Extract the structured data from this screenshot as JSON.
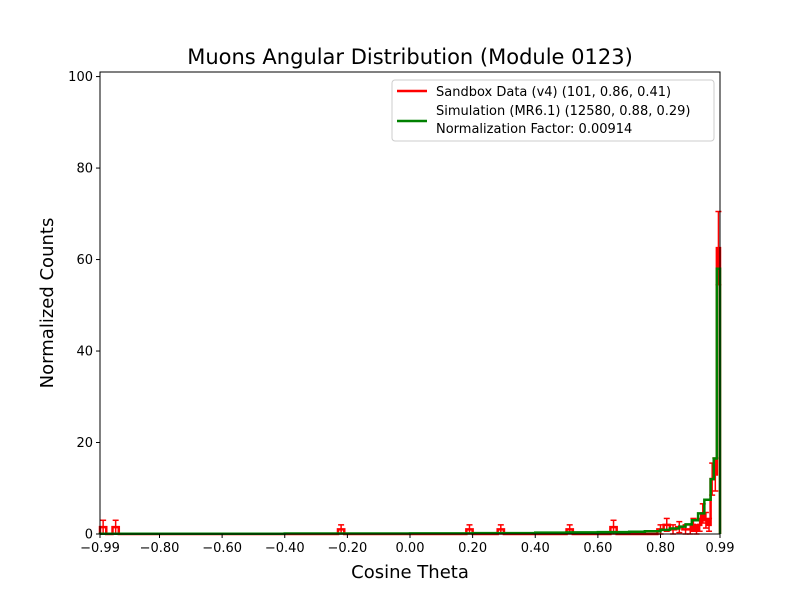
{
  "chart_data": {
    "type": "line",
    "title": "Muons Angular Distribution (Module 0123)",
    "xlabel": "Cosine Theta",
    "ylabel": "Normalized Counts",
    "xlim": [
      -0.99,
      0.99
    ],
    "ylim": [
      0,
      101
    ],
    "x_ticks": [
      -0.99,
      -0.8,
      -0.6,
      -0.4,
      -0.2,
      0.0,
      0.2,
      0.4,
      0.6,
      0.8,
      0.99
    ],
    "x_tick_labels": [
      "−0.99",
      "−0.80",
      "−0.60",
      "−0.40",
      "−0.20",
      "0.00",
      "0.20",
      "0.40",
      "0.60",
      "0.80",
      "0.99"
    ],
    "y_ticks": [
      0,
      20,
      40,
      60,
      80,
      100
    ],
    "y_tick_labels": [
      "0",
      "20",
      "40",
      "60",
      "80",
      "100"
    ],
    "grid": false,
    "legend_position": "top-right",
    "colors": {
      "data": "#ff0000",
      "simulation": "#008000"
    },
    "series": [
      {
        "name": "Sandbox Data (v4) (101, 0.86, 0.41)",
        "style": "step-with-error-bars",
        "bin_edges": [
          -0.99,
          -0.97,
          -0.95,
          -0.93,
          -0.23,
          -0.21,
          0.18,
          0.2,
          0.28,
          0.3,
          0.5,
          0.52,
          0.64,
          0.66,
          0.79,
          0.81,
          0.83,
          0.85,
          0.87,
          0.89,
          0.9,
          0.91,
          0.92,
          0.93,
          0.94,
          0.95,
          0.96,
          0.97,
          0.98,
          0.99
        ],
        "values": [
          1.5,
          0,
          1.5,
          0,
          1.0,
          0,
          1.0,
          0,
          1.0,
          0,
          1.0,
          0,
          1.5,
          0,
          1.0,
          2.0,
          1.0,
          1.5,
          1.0,
          1.0,
          2.0,
          1.0,
          2.0,
          4.5,
          3.0,
          2.0,
          12.0,
          13.0,
          62.5
        ],
        "errors": [
          1.5,
          0,
          1.5,
          0,
          1.0,
          0,
          1.0,
          0,
          1.0,
          0,
          1.0,
          0,
          1.5,
          0,
          1.0,
          1.4,
          1.0,
          1.2,
          1.0,
          1.0,
          1.4,
          1.0,
          1.4,
          2.1,
          1.7,
          1.4,
          3.5,
          3.6,
          8.0
        ]
      },
      {
        "name": "Simulation (MR6.1) (12580, 0.88, 0.29)",
        "subtitle": "Normalization Factor: 0.00914",
        "style": "step",
        "bin_edges": [
          -0.99,
          -0.8,
          -0.6,
          -0.4,
          -0.2,
          0.0,
          0.2,
          0.4,
          0.5,
          0.6,
          0.7,
          0.75,
          0.8,
          0.83,
          0.86,
          0.88,
          0.9,
          0.92,
          0.94,
          0.96,
          0.97,
          0.98,
          0.99
        ],
        "values": [
          0.05,
          0.05,
          0.05,
          0.1,
          0.1,
          0.15,
          0.2,
          0.3,
          0.35,
          0.4,
          0.5,
          0.6,
          0.9,
          1.2,
          1.6,
          2.1,
          3.0,
          4.5,
          7.5,
          12.0,
          16.5,
          58.0
        ]
      }
    ]
  }
}
